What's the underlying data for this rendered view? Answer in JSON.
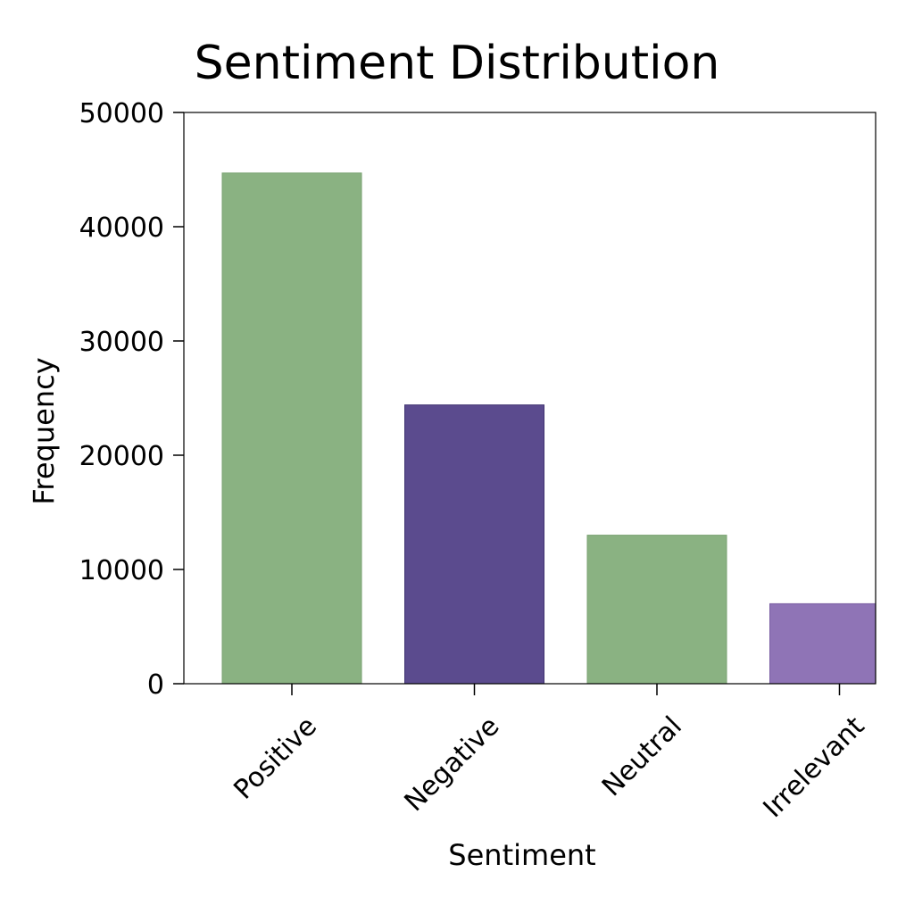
{
  "chart_data": {
    "type": "bar",
    "title": "Sentiment Distribution",
    "xlabel": "Sentiment",
    "ylabel": "Frequency",
    "categories": [
      "Positive",
      "Negative",
      "Neutral",
      "Irrelevant"
    ],
    "values": [
      44700,
      24400,
      13000,
      7000
    ],
    "colors": [
      "#8ab282",
      "#5b4b8e",
      "#8ab282",
      "#8f74b6"
    ],
    "ylim": [
      0,
      50000
    ],
    "yticks": [
      0,
      10000,
      20000,
      30000,
      40000,
      50000
    ],
    "ytick_labels": [
      "0",
      "10000",
      "20000",
      "30000",
      "40000",
      "50000"
    ],
    "grid": false,
    "legend": "none"
  }
}
